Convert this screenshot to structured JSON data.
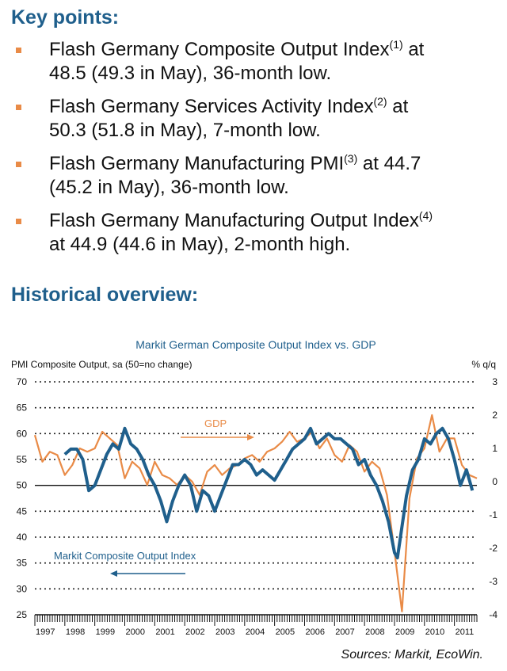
{
  "key_points": {
    "heading": "Key points:",
    "items": [
      {
        "pre": "Flash Germany Composite Output Index",
        "sup": "(1)",
        "post": " at",
        "line2": "48.5 (49.3 in May), 36-month low."
      },
      {
        "pre": "Flash Germany Services Activity Index",
        "sup": "(2)",
        "post": " at",
        "line2": "50.3 (51.8 in May), 7-month low."
      },
      {
        "pre": "Flash Germany Manufacturing PMI",
        "sup": "(3)",
        "post": " at 44.7",
        "line2": "(45.2 in May), 36-month low."
      },
      {
        "pre": "Flash Germany Manufacturing Output Index",
        "sup": "(4)",
        "post": "",
        "line2": "at 44.9 (44.6 in May), 2-month high."
      }
    ]
  },
  "overview_heading": "Historical overview:",
  "colors": {
    "pmi": "#1f5f8c",
    "gdp": "#e98b47",
    "title": "#1f5f8c",
    "bullet": "#e98b47"
  },
  "chart_data": {
    "type": "line",
    "title": "Markit German Composite Output Index vs. GDP",
    "ylabel_left": "PMI Composite Output, sa (50=no change)",
    "ylabel_right": "% q/q",
    "ylim_left": [
      25,
      70
    ],
    "yticks_left": [
      70,
      65,
      60,
      55,
      50,
      45,
      40,
      35,
      30,
      25
    ],
    "ylim_right": [
      -4,
      3
    ],
    "yticks_right": [
      3,
      2,
      1,
      0,
      -1,
      -2,
      -3,
      -4
    ],
    "xlim": [
      1997,
      2011.75
    ],
    "years": [
      "1997",
      "1998",
      "1999",
      "2000",
      "2001",
      "2002",
      "2003",
      "2004",
      "2005",
      "2006",
      "2007",
      "2008",
      "2009",
      "2010",
      "2011"
    ],
    "grid": true,
    "series": [
      {
        "name": "Markit Composite Output Index",
        "axis": "left",
        "annotation": "Markit Composite Output Index",
        "x": [
          1998.0,
          1998.2,
          1998.4,
          1998.6,
          1998.8,
          1999.0,
          1999.2,
          1999.4,
          1999.6,
          1999.8,
          2000.0,
          2000.2,
          2000.4,
          2000.6,
          2000.8,
          2001.0,
          2001.2,
          2001.4,
          2001.6,
          2001.8,
          2002.0,
          2002.2,
          2002.4,
          2002.6,
          2002.8,
          2003.0,
          2003.2,
          2003.4,
          2003.6,
          2003.8,
          2004.0,
          2004.2,
          2004.4,
          2004.6,
          2004.8,
          2005.0,
          2005.2,
          2005.4,
          2005.6,
          2005.8,
          2006.0,
          2006.2,
          2006.4,
          2006.6,
          2006.8,
          2007.0,
          2007.2,
          2007.4,
          2007.6,
          2007.8,
          2008.0,
          2008.2,
          2008.4,
          2008.6,
          2008.8,
          2009.0,
          2009.1,
          2009.2,
          2009.4,
          2009.6,
          2009.8,
          2010.0,
          2010.2,
          2010.4,
          2010.6,
          2010.8,
          2011.0,
          2011.2,
          2011.4,
          2011.6
        ],
        "values": [
          56,
          57,
          57,
          55,
          49,
          50,
          53,
          56,
          58,
          57,
          61,
          58,
          57,
          55,
          52,
          50,
          47,
          43,
          47,
          50,
          52,
          50,
          45,
          49,
          48,
          45,
          48,
          51,
          54,
          54,
          55,
          54,
          52,
          53,
          52,
          51,
          53,
          55,
          57,
          58,
          59,
          61,
          58,
          59,
          60,
          59,
          59,
          58,
          57,
          54,
          55,
          52,
          50,
          47,
          43,
          37,
          36,
          40,
          48,
          53,
          55,
          59,
          58,
          60,
          61,
          59,
          55,
          50,
          53,
          49
        ]
      },
      {
        "name": "GDP",
        "axis": "right",
        "annotation": "GDP",
        "x": [
          1997.0,
          1997.25,
          1997.5,
          1997.75,
          1998.0,
          1998.25,
          1998.5,
          1998.75,
          1999.0,
          1999.25,
          1999.5,
          1999.75,
          2000.0,
          2000.25,
          2000.5,
          2000.75,
          2001.0,
          2001.25,
          2001.5,
          2001.75,
          2002.0,
          2002.25,
          2002.5,
          2002.75,
          2003.0,
          2003.25,
          2003.5,
          2003.75,
          2004.0,
          2004.25,
          2004.5,
          2004.75,
          2005.0,
          2005.25,
          2005.5,
          2005.75,
          2006.0,
          2006.25,
          2006.5,
          2006.75,
          2007.0,
          2007.25,
          2007.5,
          2007.75,
          2008.0,
          2008.25,
          2008.5,
          2008.75,
          2009.0,
          2009.25,
          2009.5,
          2009.75,
          2010.0,
          2010.25,
          2010.5,
          2010.75,
          2011.0,
          2011.25,
          2011.5,
          2011.75
        ],
        "values": [
          1.4,
          0.6,
          0.9,
          0.8,
          0.2,
          0.5,
          1.0,
          0.9,
          1.0,
          1.5,
          1.3,
          1.1,
          0.1,
          0.6,
          0.4,
          -0.1,
          0.6,
          0.2,
          0.1,
          -0.1,
          0.2,
          0.0,
          -0.4,
          0.3,
          0.5,
          0.2,
          0.4,
          0.5,
          0.7,
          0.8,
          0.6,
          0.9,
          1.0,
          1.2,
          1.5,
          1.2,
          1.3,
          1.5,
          1.0,
          1.3,
          0.8,
          0.6,
          1.1,
          0.9,
          0.3,
          0.6,
          0.4,
          -0.4,
          -2.1,
          -3.9,
          -0.5,
          0.7,
          1.0,
          2.0,
          0.9,
          1.3,
          1.3,
          0.5,
          0.2,
          0.1
        ]
      }
    ]
  },
  "source": "Sources: Markit, EcoWin."
}
